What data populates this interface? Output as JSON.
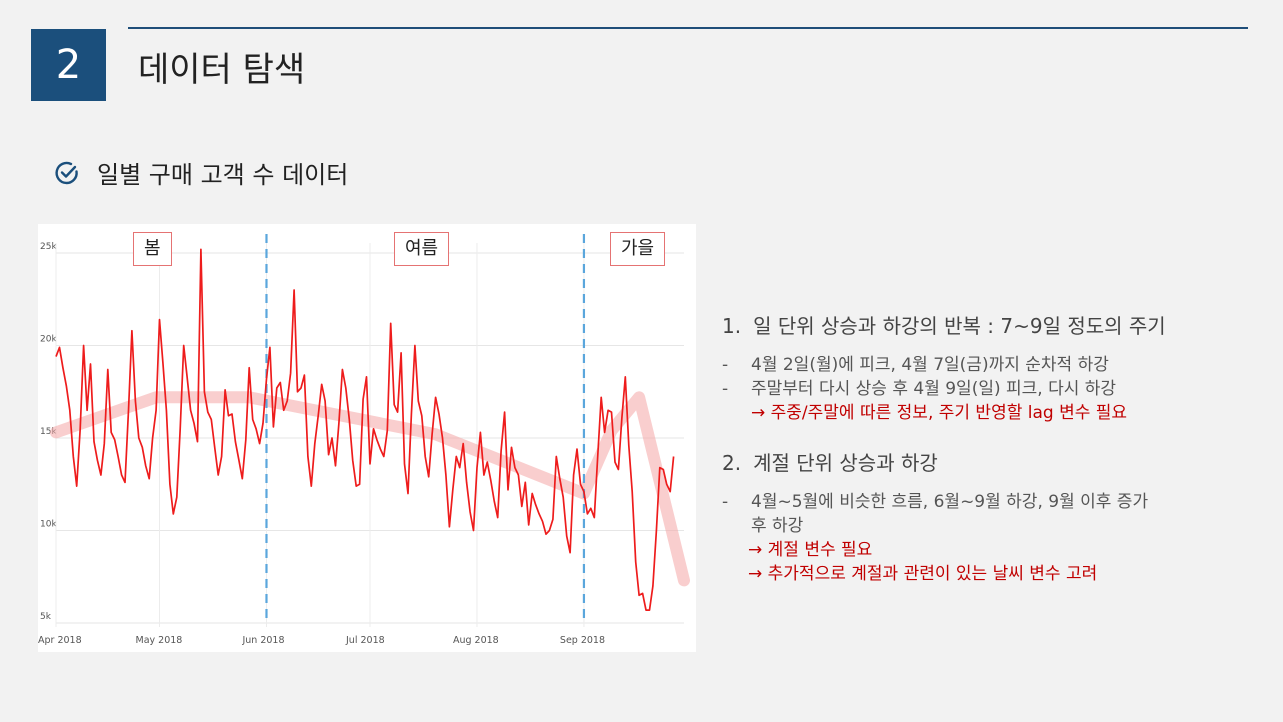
{
  "slide": {
    "number": "2",
    "title": "데이터 탐색",
    "subtitle": "일별 구매 고객 수 데이터"
  },
  "seasons": {
    "spring": "봄",
    "summer": "여름",
    "autumn": "가을"
  },
  "notes": {
    "section1": {
      "index": "1.",
      "heading": "일 단위 상승과 하강의 반복 : 7~9일 정도의 주기",
      "bullets": [
        "4월 2일(월)에 피크, 4월 7일(금)까지 순차적 하강",
        "주말부터 다시 상승 후 4월 9일(일) 피크, 다시 하강"
      ],
      "conclusion": "→ 주중/주말에 따른 정보, 주기 반영할 lag 변수 필요"
    },
    "section2": {
      "index": "2.",
      "heading": "계절 단위 상승과 하강",
      "bullet_line1": "4월~5월에 비슷한 흐름, 6월~9월 하강, 9월 이후 증가",
      "bullet_line2": "후 하강",
      "conclusion1": "→ 계절 변수 필요",
      "conclusion2": "→ 추가적으로 계절과 관련이 있는 날씨 변수 고려"
    }
  },
  "colors": {
    "accent": "#1b4f7c",
    "line": "#ee1c1c",
    "trend": "#f4a6a6",
    "divider": "#5aa6dc",
    "note_red": "#c00000"
  },
  "chart_data": {
    "type": "line",
    "title": "",
    "xlabel": "",
    "ylabel": "",
    "x_start": "2018-04-01",
    "x_end": "2018-09-30",
    "ylim": [
      5000,
      25000
    ],
    "y_ticks": [
      5000,
      10000,
      15000,
      20000,
      25000
    ],
    "y_tick_labels": [
      "5k",
      "10k",
      "15k",
      "20k",
      "25k"
    ],
    "x_tick_dates": [
      "2018-04-01",
      "2018-05-01",
      "2018-06-01",
      "2018-07-01",
      "2018-08-01",
      "2018-09-01"
    ],
    "x_tick_labels": [
      "Apr 2018",
      "May 2018",
      "Jun 2018",
      "Jul 2018",
      "Aug 2018",
      "Sep 2018"
    ],
    "grid": true,
    "season_dividers": [
      "2018-06-01",
      "2018-09-01"
    ],
    "series": [
      {
        "values": [
          19400,
          19900,
          18800,
          17800,
          16500,
          14000,
          12400,
          15500,
          20000,
          16500,
          19000,
          14800,
          13800,
          13000,
          14700,
          18700,
          15300,
          14900,
          14000,
          13000,
          12600,
          16500,
          20800,
          17000,
          15000,
          14500,
          13500,
          12800,
          15000,
          16500,
          21400,
          19000,
          16500,
          12500,
          10900,
          11800,
          15500,
          20000,
          18300,
          16500,
          15800,
          14800,
          25200,
          17500,
          16400,
          16000,
          14500,
          13000,
          14000,
          17600,
          16200,
          16300,
          14800,
          13800,
          12800,
          14900,
          18800,
          16000,
          15500,
          14700,
          15800,
          18200,
          19900,
          15600,
          17700,
          18000,
          16500,
          17000,
          18500,
          23000,
          17500,
          17700,
          18400,
          14000,
          12400,
          14700,
          16200,
          17900,
          17000,
          14100,
          15000,
          13500,
          15800,
          18700,
          17700,
          16000,
          13800,
          12400,
          12500,
          17100,
          18300,
          13600,
          15500,
          14900,
          14400,
          14000,
          15400,
          21200,
          16800,
          16400,
          19600,
          13600,
          12000,
          16300,
          20000,
          17000,
          16200,
          14000,
          12900,
          15200,
          17200,
          16300,
          15000,
          13000,
          10200,
          12200,
          14000,
          13400,
          14700,
          12600,
          11000,
          10000,
          13400,
          15300,
          13000,
          13700,
          12700,
          11600,
          10700,
          14300,
          16400,
          12200,
          14500,
          13400,
          13000,
          11300,
          12600,
          10300,
          12000,
          11400,
          10900,
          10500,
          9800,
          10000,
          10600,
          14000,
          12800,
          11800,
          9700,
          8800,
          13000,
          14400,
          12500,
          12100,
          10900,
          11200,
          10700,
          14000,
          17200,
          15300,
          16500,
          16400,
          13700,
          13300,
          16100,
          18300,
          14600,
          12100,
          8300,
          6500,
          6600,
          5700,
          5700,
          7000,
          10000,
          13400,
          13300,
          12500,
          12100,
          14000
        ]
      }
    ],
    "trend_polyline": [
      {
        "date": "2018-04-01",
        "value": 15300
      },
      {
        "date": "2018-04-30",
        "value": 17200
      },
      {
        "date": "2018-05-27",
        "value": 17200
      },
      {
        "date": "2018-07-20",
        "value": 15200
      },
      {
        "date": "2018-09-01",
        "value": 12000
      },
      {
        "date": "2018-09-09",
        "value": 15400
      },
      {
        "date": "2018-09-17",
        "value": 17200
      },
      {
        "date": "2018-09-30",
        "value": 7300
      }
    ]
  }
}
